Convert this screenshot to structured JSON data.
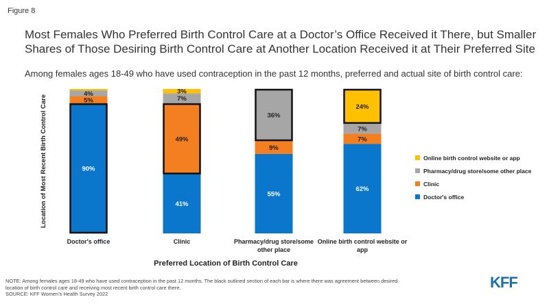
{
  "figure_label": "Figure 8",
  "title_lines": [
    "Most Females Who Preferred Birth Control Care at a Doctor’s Office Received it There, but Smaller",
    "Shares of Those Desiring Birth Control Care at Another Location Received it at Their Preferred Site"
  ],
  "subtitle": "Among females ages 18-49 who have used contraception in the past 12 months, preferred and actual site of birth control care:",
  "note_lines": [
    "NOTE: Among females ages 18-49 who have used contraception in the past 12 months. The black outlined section of each bar is where there was agreement between desired",
    "location of birth control care and receiving most recent birth control care there.",
    "SOURCE: KFF Women’s Health Survey 2022"
  ],
  "logo_text": "KFF",
  "chart_data": {
    "type": "bar",
    "stacked": true,
    "xlabel": "Preferred Location of Birth Control Care",
    "ylabel": "Location of Most Recent Birth Control Care",
    "ylim": [
      0,
      100
    ],
    "grid": false,
    "legend_position": "right",
    "categories": [
      [
        "Doctor's office"
      ],
      [
        "Clinic"
      ],
      [
        "Pharmacy/drug store/some",
        "other place"
      ],
      [
        "Online birth control website or",
        "app"
      ]
    ],
    "series": [
      {
        "name": "Doctor's office",
        "color": "#0A77CC",
        "values": [
          90,
          41,
          55,
          62
        ],
        "labels": [
          "90%",
          "41%",
          "55%",
          "62%"
        ]
      },
      {
        "name": "Clinic",
        "color": "#F47F20",
        "values": [
          5,
          49,
          9,
          7
        ],
        "labels": [
          "5%",
          "49%",
          "9%",
          "7%"
        ]
      },
      {
        "name": "Pharmacy/drug store/some other place",
        "color": "#A6A6A6",
        "values": [
          4,
          7,
          36,
          7
        ],
        "labels": [
          "4%",
          "7%",
          "36%",
          "7%"
        ]
      },
      {
        "name": "Online birth control website or app",
        "color": "#FFC000",
        "values": [
          1,
          3,
          0,
          24
        ],
        "labels": [
          "",
          "3%",
          "",
          "24%"
        ]
      }
    ],
    "outlined_series_index": [
      0,
      1,
      2,
      3
    ]
  }
}
